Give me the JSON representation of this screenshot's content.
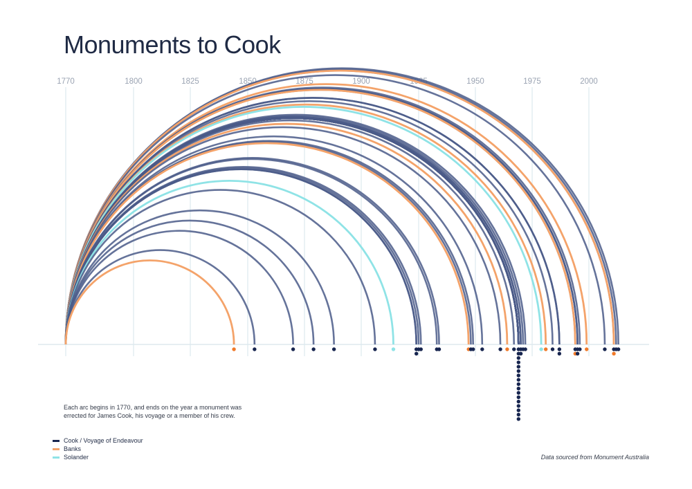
{
  "title": "Monuments to Cook",
  "note": "Each arc begins in 1770, and ends on the year a monument was errected for James Cook, his voyage or a member of his crew.",
  "source": "Data sourced from Monument Australia",
  "colors": {
    "cook": "#4a5a88",
    "cook_strong": "#17254f",
    "banks": "#f4a36a",
    "solander": "#8fe3e6",
    "grid": "#dde9ee",
    "banks_dot": "#f07a2a"
  },
  "legend": [
    {
      "key": "cook",
      "label": "Cook / Voyage of Endeavour",
      "color": "#17254f"
    },
    {
      "key": "banks",
      "label": "Banks",
      "color": "#f4a36a"
    },
    {
      "key": "solander",
      "label": "Solander",
      "color": "#8fe3e6"
    }
  ],
  "chart_data": {
    "type": "arc",
    "title": "Monuments to Cook",
    "start_year": 1770,
    "x_ticks": [
      1770,
      1800,
      1825,
      1850,
      1875,
      1900,
      1925,
      1950,
      1975,
      2000
    ],
    "grid": true,
    "series": [
      {
        "name": "Cook / Voyage of Endeavour",
        "key": "cook",
        "end_years": [
          1853,
          1870,
          1879,
          1888,
          1906,
          1924,
          1924,
          1925,
          1926,
          1933,
          1934,
          1948,
          1949,
          1953,
          1961,
          1967,
          1969,
          1969,
          1969,
          1969,
          1969,
          1969,
          1969,
          1969,
          1969,
          1969,
          1969,
          1969,
          1969,
          1969,
          1969,
          1969,
          1969,
          1970,
          1970,
          1971,
          1972,
          1984,
          1987,
          1987,
          1994,
          1995,
          1995,
          1996,
          2007,
          2011,
          2012,
          2013
        ]
      },
      {
        "name": "Banks",
        "key": "banks",
        "end_years": [
          1844,
          1947,
          1964,
          1981,
          1994,
          1999,
          2011
        ]
      },
      {
        "name": "Solander",
        "key": "solander",
        "end_years": [
          1914,
          1979
        ]
      }
    ]
  }
}
